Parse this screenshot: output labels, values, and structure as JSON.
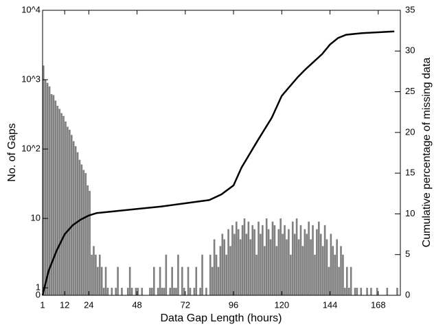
{
  "chart_data": {
    "type": "histogram",
    "xlabel": "Data Gap Length (hours)",
    "ylabel": "No. of Gaps",
    "y2label": "Cumulative percentage of missing data",
    "bins": [
      1,
      2,
      3,
      4,
      5,
      6,
      7,
      8,
      9,
      10,
      11,
      12,
      13,
      14,
      15,
      16,
      17,
      18,
      19,
      20,
      21,
      22,
      23,
      24,
      25,
      26,
      27,
      28,
      29,
      30,
      31,
      32,
      33,
      34,
      35,
      36,
      37,
      38,
      39,
      40,
      41,
      42,
      43,
      44,
      45,
      46,
      47,
      48,
      49,
      50,
      51,
      52,
      53,
      54,
      55,
      56,
      57,
      58,
      59,
      60,
      61,
      62,
      63,
      64,
      65,
      66,
      67,
      68,
      69,
      70,
      71,
      72,
      73,
      74,
      75,
      76,
      77,
      78,
      79,
      80,
      81,
      82,
      83,
      84,
      85,
      86,
      87,
      88,
      89,
      90,
      91,
      92,
      93,
      94,
      95,
      96,
      97,
      98,
      99,
      100,
      101,
      102,
      103,
      104,
      105,
      106,
      107,
      108,
      109,
      110,
      111,
      112,
      113,
      114,
      115,
      116,
      117,
      118,
      119,
      120,
      121,
      122,
      123,
      124,
      125,
      126,
      127,
      128,
      129,
      130,
      131,
      132,
      133,
      134,
      135,
      136,
      137,
      138,
      139,
      140,
      141,
      142,
      143,
      144,
      145,
      146,
      147,
      148,
      149,
      150,
      151,
      152,
      153,
      154,
      155,
      156,
      157,
      158,
      159,
      160,
      161,
      162,
      163,
      164,
      165,
      166,
      167,
      168,
      169,
      170,
      171,
      172,
      173,
      174,
      175,
      176,
      177,
      178,
      179
    ],
    "values": [
      1600,
      1000,
      900,
      800,
      620,
      600,
      500,
      420,
      380,
      330,
      300,
      250,
      210,
      190,
      160,
      130,
      110,
      90,
      70,
      60,
      50,
      45,
      30,
      25,
      3,
      4,
      3,
      2,
      3,
      2,
      1,
      2,
      1,
      0,
      1,
      0,
      1,
      2,
      0,
      1,
      0,
      0,
      1,
      2,
      1,
      0,
      1,
      1,
      0,
      1,
      0,
      0,
      0,
      1,
      1,
      2,
      0,
      1,
      2,
      1,
      1,
      3,
      0,
      1,
      2,
      1,
      1,
      3,
      0,
      2,
      1,
      0,
      2,
      1,
      0,
      1,
      2,
      0,
      1,
      3,
      0,
      1,
      0,
      3,
      2,
      5,
      3,
      2,
      4,
      6,
      5,
      3,
      7,
      4,
      8,
      6,
      9,
      7,
      5,
      8,
      10,
      6,
      9,
      5,
      8,
      7,
      3,
      9,
      6,
      8,
      4,
      10,
      7,
      5,
      9,
      8,
      4,
      7,
      10,
      6,
      8,
      5,
      7,
      3,
      9,
      6,
      10,
      5,
      8,
      4,
      7,
      6,
      9,
      5,
      8,
      3,
      7,
      9,
      6,
      4,
      8,
      5,
      2,
      6,
      4,
      3,
      5,
      2,
      4,
      3,
      1,
      2,
      1,
      2,
      0,
      1,
      1,
      0,
      1,
      0,
      0,
      1,
      0,
      1,
      0,
      0,
      1,
      0,
      0,
      0,
      0,
      1,
      0,
      0,
      0,
      0,
      1,
      0
    ],
    "color": "#808080",
    "line": {
      "axis": "y2",
      "color": "#000000",
      "x": [
        1,
        4,
        8,
        12,
        16,
        20,
        24,
        28,
        36,
        48,
        60,
        72,
        84,
        90,
        96,
        100,
        108,
        115,
        120,
        128,
        132,
        140,
        144,
        148,
        152,
        160,
        168,
        176
      ],
      "values": [
        0,
        3,
        5.5,
        7.5,
        8.6,
        9.3,
        9.8,
        10.1,
        10.3,
        10.6,
        10.9,
        11.3,
        11.7,
        12.4,
        13.5,
        15.7,
        19.0,
        21.8,
        24.5,
        26.8,
        27.8,
        29.6,
        30.8,
        31.6,
        32.0,
        32.2,
        32.3,
        32.4
      ]
    },
    "xlim": [
      1,
      179
    ],
    "xticks": [
      1,
      12,
      24,
      48,
      72,
      96,
      120,
      144,
      168
    ],
    "yscale": "log",
    "ylim": [
      0.78,
      10000
    ],
    "yticks": [
      0,
      1,
      10,
      {
        "value": 100,
        "label": "10^2"
      },
      {
        "value": 1000,
        "label": "10^3"
      },
      {
        "value": 10000,
        "label": "10^4"
      }
    ],
    "y2lim": [
      0,
      35
    ],
    "y2ticks": [
      0,
      5,
      10,
      15,
      20,
      25,
      30,
      35
    ]
  }
}
